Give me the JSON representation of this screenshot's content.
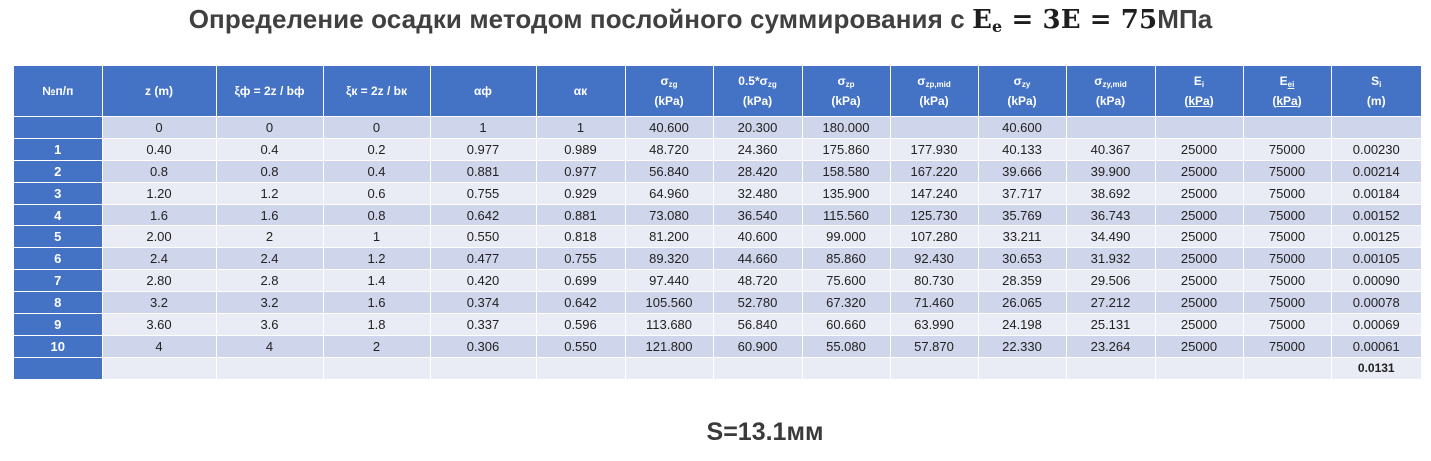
{
  "title": {
    "text": "Определение осадки методом послойного суммирования с ",
    "formula_main": "E",
    "formula_sub": "e",
    "formula_rest": " = 3E = 75",
    "unit": "МПа"
  },
  "table": {
    "headers": [
      {
        "main": "№п/п"
      },
      {
        "main": "z (m)"
      },
      {
        "main": "ξф = 2z / bф"
      },
      {
        "main": "ξк = 2z / bк"
      },
      {
        "main": "αф"
      },
      {
        "main": "αк"
      },
      {
        "main": "σ",
        "sub": "zg",
        "unit": "(kPa)"
      },
      {
        "main": "0.5*σ",
        "sub": "zg",
        "unit": "(kPa)"
      },
      {
        "main": "σ",
        "sub": "zp",
        "unit": "(kPa)"
      },
      {
        "main": "σ",
        "sub": "zp,mid",
        "unit": "(kPa)"
      },
      {
        "main": "σ",
        "sub": "zy",
        "unit": "(kPa)"
      },
      {
        "main": "σ",
        "sub": "zy,mid",
        "unit": "(kPa)"
      },
      {
        "main": "E",
        "sub": "i",
        "unit": "(kPa)"
      },
      {
        "main": "E",
        "sub": "ei",
        "unit": "(kPa)"
      },
      {
        "main": "S",
        "sub": "i",
        "unit": "(m)"
      }
    ],
    "rows": [
      [
        "",
        "0",
        "0",
        "0",
        "1",
        "1",
        "40.600",
        "20.300",
        "180.000",
        "",
        "40.600",
        "",
        "",
        "",
        ""
      ],
      [
        "1",
        "0.40",
        "0.4",
        "0.2",
        "0.977",
        "0.989",
        "48.720",
        "24.360",
        "175.860",
        "177.930",
        "40.133",
        "40.367",
        "25000",
        "75000",
        "0.00230"
      ],
      [
        "2",
        "0.8",
        "0.8",
        "0.4",
        "0.881",
        "0.977",
        "56.840",
        "28.420",
        "158.580",
        "167.220",
        "39.666",
        "39.900",
        "25000",
        "75000",
        "0.00214"
      ],
      [
        "3",
        "1.20",
        "1.2",
        "0.6",
        "0.755",
        "0.929",
        "64.960",
        "32.480",
        "135.900",
        "147.240",
        "37.717",
        "38.692",
        "25000",
        "75000",
        "0.00184"
      ],
      [
        "4",
        "1.6",
        "1.6",
        "0.8",
        "0.642",
        "0.881",
        "73.080",
        "36.540",
        "115.560",
        "125.730",
        "35.769",
        "36.743",
        "25000",
        "75000",
        "0.00152"
      ],
      [
        "5",
        "2.00",
        "2",
        "1",
        "0.550",
        "0.818",
        "81.200",
        "40.600",
        "99.000",
        "107.280",
        "33.211",
        "34.490",
        "25000",
        "75000",
        "0.00125"
      ],
      [
        "6",
        "2.4",
        "2.4",
        "1.2",
        "0.477",
        "0.755",
        "89.320",
        "44.660",
        "85.860",
        "92.430",
        "30.653",
        "31.932",
        "25000",
        "75000",
        "0.00105"
      ],
      [
        "7",
        "2.80",
        "2.8",
        "1.4",
        "0.420",
        "0.699",
        "97.440",
        "48.720",
        "75.600",
        "80.730",
        "28.359",
        "29.506",
        "25000",
        "75000",
        "0.00090"
      ],
      [
        "8",
        "3.2",
        "3.2",
        "1.6",
        "0.374",
        "0.642",
        "105.560",
        "52.780",
        "67.320",
        "71.460",
        "26.065",
        "27.212",
        "25000",
        "75000",
        "0.00078"
      ],
      [
        "9",
        "3.60",
        "3.6",
        "1.8",
        "0.337",
        "0.596",
        "113.680",
        "56.840",
        "60.660",
        "63.990",
        "24.198",
        "25.131",
        "25000",
        "75000",
        "0.00069"
      ],
      [
        "10",
        "4",
        "4",
        "2",
        "0.306",
        "0.550",
        "121.800",
        "60.900",
        "55.080",
        "57.870",
        "22.330",
        "23.264",
        "25000",
        "75000",
        "0.00061"
      ]
    ],
    "total": "0.0131"
  },
  "result": "S=13.1мм"
}
